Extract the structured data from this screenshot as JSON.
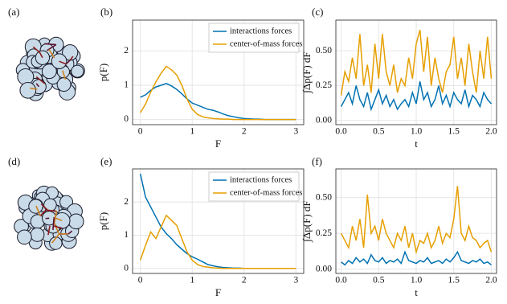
{
  "illustrations": [
    {
      "label": "(a)"
    },
    {
      "label": "(d)"
    }
  ],
  "chart_data": [
    {
      "type": "line",
      "label": "(b)",
      "xlabel": "F",
      "ylabel": "p(F)",
      "grid": true,
      "legend": "top-right",
      "x": [
        0,
        0.1,
        0.2,
        0.3,
        0.4,
        0.5,
        0.6,
        0.7,
        0.8,
        0.9,
        1.0,
        1.1,
        1.2,
        1.3,
        1.4,
        1.5,
        1.6,
        1.7,
        1.8,
        1.9,
        2.0,
        2.1,
        2.2,
        2.3,
        2.4,
        2.5,
        2.6,
        2.7,
        2.8,
        2.9,
        3.0
      ],
      "series": [
        {
          "name": "interactions forces",
          "color": "#0072b2",
          "values": [
            0.65,
            0.72,
            0.85,
            0.95,
            1.0,
            1.05,
            0.98,
            0.88,
            0.75,
            0.6,
            0.48,
            0.42,
            0.36,
            0.3,
            0.27,
            0.22,
            0.16,
            0.11,
            0.08,
            0.05,
            0.03,
            0.02,
            0.01,
            0.01,
            0,
            0,
            0,
            0,
            0,
            0,
            0
          ]
        },
        {
          "name": "center-of-mass forces",
          "color": "#e69f00",
          "values": [
            0.2,
            0.45,
            0.8,
            1.1,
            1.35,
            1.55,
            1.45,
            1.3,
            1.0,
            0.6,
            0.3,
            0.15,
            0.08,
            0.05,
            0.03,
            0.02,
            0.01,
            0.01,
            0,
            0,
            0,
            0,
            0,
            0,
            0,
            0,
            0,
            0,
            0,
            0,
            0
          ]
        }
      ],
      "xlim": [
        -0.15,
        3.15
      ],
      "ylim": [
        -0.15,
        2.9
      ],
      "xticks": [
        0,
        1,
        2,
        3
      ],
      "yticks": [
        0,
        1,
        2
      ]
    },
    {
      "type": "line",
      "label": "(c)",
      "xlabel": "t",
      "ylabel": "∫Δp(F) dF",
      "grid": true,
      "x": [
        0,
        0.05,
        0.1,
        0.15,
        0.2,
        0.25,
        0.3,
        0.35,
        0.4,
        0.45,
        0.5,
        0.55,
        0.6,
        0.65,
        0.7,
        0.75,
        0.8,
        0.85,
        0.9,
        0.95,
        1.0,
        1.05,
        1.1,
        1.15,
        1.2,
        1.25,
        1.3,
        1.35,
        1.4,
        1.45,
        1.5,
        1.55,
        1.6,
        1.65,
        1.7,
        1.75,
        1.8,
        1.85,
        1.9,
        1.95,
        2.0
      ],
      "series": [
        {
          "name": "interactions forces",
          "color": "#0072b2",
          "values": [
            0.1,
            0.15,
            0.2,
            0.12,
            0.25,
            0.15,
            0.1,
            0.2,
            0.08,
            0.15,
            0.22,
            0.12,
            0.18,
            0.1,
            0.15,
            0.08,
            0.12,
            0.15,
            0.1,
            0.2,
            0.12,
            0.28,
            0.15,
            0.2,
            0.1,
            0.15,
            0.25,
            0.12,
            0.18,
            0.1,
            0.2,
            0.15,
            0.12,
            0.22,
            0.1,
            0.18,
            0.15,
            0.1,
            0.2,
            0.15,
            0.12
          ]
        },
        {
          "name": "center-of-mass forces",
          "color": "#e69f00",
          "values": [
            0.18,
            0.35,
            0.28,
            0.45,
            0.3,
            0.62,
            0.25,
            0.4,
            0.2,
            0.55,
            0.3,
            0.62,
            0.35,
            0.25,
            0.4,
            0.2,
            0.3,
            0.25,
            0.45,
            0.3,
            0.55,
            0.65,
            0.35,
            0.6,
            0.25,
            0.45,
            0.3,
            0.2,
            0.35,
            0.4,
            0.6,
            0.3,
            0.45,
            0.25,
            0.55,
            0.35,
            0.2,
            0.5,
            0.3,
            0.6,
            0.3
          ]
        }
      ],
      "xlim": [
        -0.07,
        2.07
      ],
      "ylim": [
        -0.03,
        0.72
      ],
      "xticks": [
        {
          "value": 0,
          "label": "0.0"
        },
        0.5,
        {
          "value": 1,
          "label": "1.0"
        },
        1.5,
        {
          "value": 2,
          "label": "2.0"
        }
      ],
      "yticks": [
        {
          "value": 0,
          "label": "0.00"
        },
        0.25,
        {
          "value": 0.5,
          "label": "0.50"
        }
      ]
    },
    {
      "type": "line",
      "label": "(e)",
      "xlabel": "F",
      "ylabel": "p(F)",
      "grid": true,
      "legend": "top-right",
      "x": [
        0,
        0.1,
        0.2,
        0.3,
        0.4,
        0.5,
        0.6,
        0.7,
        0.8,
        0.9,
        1.0,
        1.1,
        1.2,
        1.3,
        1.4,
        1.5,
        1.6,
        1.7,
        1.8,
        1.9,
        2.0,
        2.1,
        2.2,
        2.3,
        2.4,
        2.5,
        2.6,
        2.7,
        2.8,
        2.9,
        3.0
      ],
      "series": [
        {
          "name": "interactions forces",
          "color": "#0072b2",
          "values": [
            2.85,
            2.15,
            1.85,
            1.55,
            1.25,
            1.05,
            0.9,
            0.72,
            0.58,
            0.45,
            0.35,
            0.28,
            0.2,
            0.12,
            0.08,
            0.05,
            0.03,
            0.02,
            0.01,
            0.01,
            0,
            0,
            0,
            0,
            0,
            0,
            0,
            0,
            0,
            0,
            0
          ]
        },
        {
          "name": "center-of-mass forces",
          "color": "#e69f00",
          "values": [
            0.25,
            0.7,
            1.1,
            0.9,
            1.25,
            1.6,
            1.45,
            1.3,
            0.9,
            0.5,
            0.25,
            0.12,
            0.06,
            0.04,
            0.02,
            0.01,
            0,
            0,
            0,
            0,
            0,
            0,
            0,
            0,
            0,
            0,
            0,
            0,
            0,
            0,
            0
          ]
        }
      ],
      "xlim": [
        -0.15,
        3.15
      ],
      "ylim": [
        -0.15,
        3.0
      ],
      "xticks": [
        0,
        1,
        2,
        3
      ],
      "yticks": [
        0,
        1,
        2
      ]
    },
    {
      "type": "line",
      "label": "(f)",
      "xlabel": "t",
      "ylabel": "∫Δp(F) dF",
      "grid": true,
      "x": [
        0,
        0.05,
        0.1,
        0.15,
        0.2,
        0.25,
        0.3,
        0.35,
        0.4,
        0.45,
        0.5,
        0.55,
        0.6,
        0.65,
        0.7,
        0.75,
        0.8,
        0.85,
        0.9,
        0.95,
        1.0,
        1.05,
        1.1,
        1.15,
        1.2,
        1.25,
        1.3,
        1.35,
        1.4,
        1.45,
        1.5,
        1.55,
        1.6,
        1.65,
        1.7,
        1.75,
        1.8,
        1.85,
        1.9,
        1.95,
        2.0
      ],
      "series": [
        {
          "name": "interactions forces",
          "color": "#0072b2",
          "values": [
            0.05,
            0.03,
            0.06,
            0.04,
            0.08,
            0.05,
            0.07,
            0.04,
            0.1,
            0.06,
            0.05,
            0.08,
            0.04,
            0.06,
            0.05,
            0.07,
            0.04,
            0.12,
            0.06,
            0.05,
            0.04,
            0.06,
            0.05,
            0.08,
            0.04,
            0.05,
            0.06,
            0.04,
            0.07,
            0.05,
            0.08,
            0.12,
            0.06,
            0.05,
            0.04,
            0.06,
            0.05,
            0.07,
            0.04,
            0.05,
            0.03
          ]
        },
        {
          "name": "center-of-mass forces",
          "color": "#e69f00",
          "values": [
            0.25,
            0.2,
            0.15,
            0.3,
            0.2,
            0.35,
            0.15,
            0.52,
            0.25,
            0.3,
            0.2,
            0.35,
            0.25,
            0.2,
            0.15,
            0.25,
            0.2,
            0.3,
            0.15,
            0.25,
            0.12,
            0.2,
            0.18,
            0.25,
            0.15,
            0.2,
            0.3,
            0.18,
            0.25,
            0.22,
            0.35,
            0.58,
            0.25,
            0.2,
            0.3,
            0.22,
            0.2,
            0.15,
            0.18,
            0.2,
            0.12
          ]
        }
      ],
      "xlim": [
        -0.07,
        2.07
      ],
      "ylim": [
        -0.03,
        0.7
      ],
      "xticks": [
        {
          "value": 0,
          "label": "0.0"
        },
        0.5,
        {
          "value": 1,
          "label": "1.0"
        },
        1.5,
        {
          "value": 2,
          "label": "2.0"
        }
      ],
      "yticks": [
        {
          "value": 0,
          "label": "0.00"
        },
        0.25,
        {
          "value": 0.5,
          "label": "0.50"
        }
      ]
    }
  ]
}
